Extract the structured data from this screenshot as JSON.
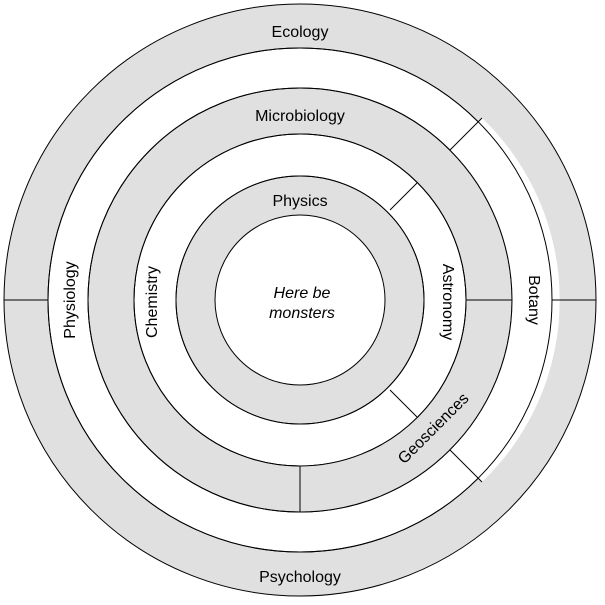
{
  "diagram": {
    "center_text_line1": "Here be",
    "center_text_line2": "monsters",
    "rings": {
      "outer_top": "Ecology",
      "outer_bottom": "Psychology",
      "ring2_left": "Physiology",
      "ring2_right": "Botany",
      "ring3_top": "Microbiology",
      "ring3_bottom_right": "Geosciences",
      "ring4_left": "Chemistry",
      "ring4_right": "Astronomy",
      "ring5_top": "Physics"
    },
    "colors": {
      "shaded_ring": "#e0e0e0",
      "unshaded_ring": "#ffffff",
      "stroke": "#000000"
    }
  }
}
